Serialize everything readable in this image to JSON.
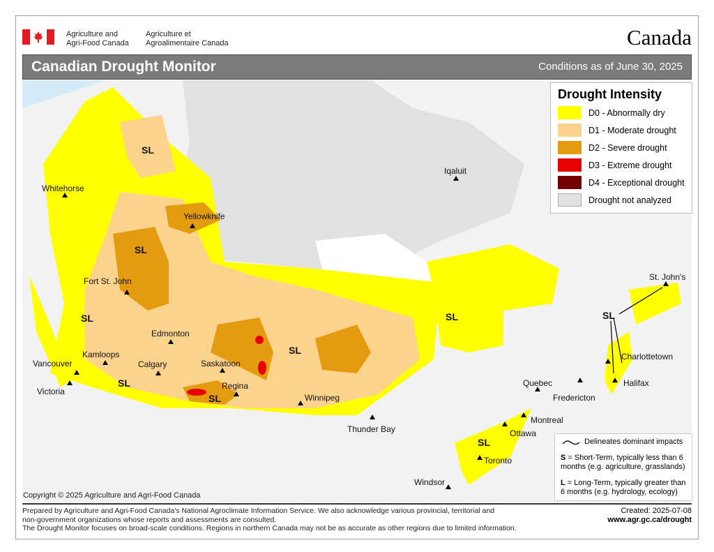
{
  "header": {
    "dept_en": [
      "Agriculture and",
      "Agri-Food Canada"
    ],
    "dept_fr": [
      "Agriculture et",
      "Agroalimentaire Canada"
    ],
    "wordmark": "Canada",
    "title": "Canadian Drought Monitor",
    "conditions": "Conditions as of June 30, 2025"
  },
  "legend": {
    "title": "Drought Intensity",
    "items": [
      {
        "label": "D0 - Abnormally dry",
        "color": "#ffff00"
      },
      {
        "label": "D1 - Moderate drought",
        "color": "#fcd38c"
      },
      {
        "label": "D2 - Severe drought",
        "color": "#e49b0f"
      },
      {
        "label": "D3 - Extreme drought",
        "color": "#e60000"
      },
      {
        "label": "D4 - Exceptional drought",
        "color": "#730000"
      },
      {
        "label": "Drought not analyzed",
        "color": "#e1e1e1"
      }
    ]
  },
  "cities": [
    "Whitehorse",
    "Yellowknife",
    "Iqaluit",
    "Fort St. John",
    "Edmonton",
    "Kamloops",
    "Calgary",
    "Vancouver",
    "Victoria",
    "Saskatoon",
    "Regina",
    "Winnipeg",
    "Thunder Bay",
    "Quebec",
    "Fredericton",
    "Charlottetown",
    "Halifax",
    "St. John's",
    "Montreal",
    "Ottawa",
    "Toronto",
    "Windsor"
  ],
  "impact_label": "SL",
  "notes": {
    "delineates": "Delineates dominant impacts",
    "s_key": "S",
    "s_text": " = Short-Term, typically less than 6 months (e.g. agriculture, grasslands)",
    "l_key": "L",
    "l_text": " = Long-Term, typically greater  than 6 months (e.g. hydrology, ecology)"
  },
  "copyright": "Copyright © 2025 Agriculture and Agri-Food Canada",
  "footer": {
    "line1": "Prepared by Agriculture and Agri-Food Canada's National Agroclimate Information Service.  We also acknowledge various provincial, territorial and",
    "line2": "non-government organizations whose reports and assessments are consulted.",
    "line3": "The Drought Monitor focuses on broad-scale conditions.  Regions in northern Canada may not be as accurate as other regions due to limited information.",
    "created": "Created: 2025-07-08",
    "url": "www.agr.gc.ca/drought"
  }
}
